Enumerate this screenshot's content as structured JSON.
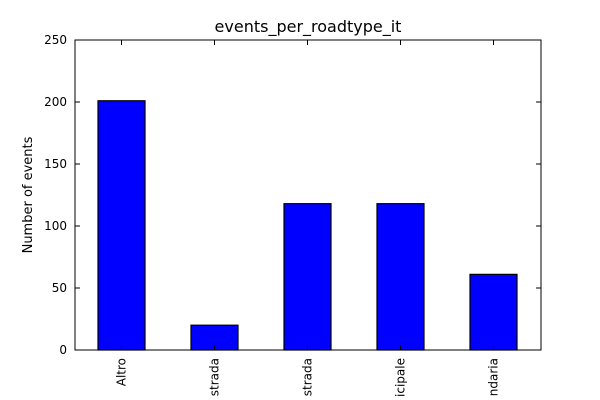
{
  "chart_data": {
    "type": "bar",
    "title": "events_per_roadtype_it",
    "xlabel": "",
    "ylabel": "Number of events",
    "ylim": [
      0,
      250
    ],
    "yticks": [
      "0",
      "50",
      "100",
      "150",
      "200",
      "250"
    ],
    "categories": [
      "Altro",
      "strada",
      "strada",
      "icipale",
      "ndaria"
    ],
    "values": [
      201,
      20,
      118,
      118,
      61
    ],
    "grid": false,
    "legend": "none",
    "colors": {
      "bar_fill": "#0000ff",
      "bar_edge": "#000000",
      "axis": "#000000",
      "background": "#ffffff"
    }
  }
}
